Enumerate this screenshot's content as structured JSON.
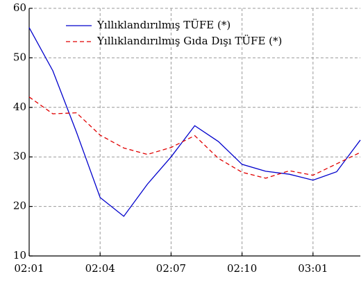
{
  "chart_data": {
    "type": "line",
    "categories": [
      "02:01",
      null,
      null,
      "02:04",
      null,
      null,
      "02:07",
      null,
      null,
      "02:10",
      null,
      null,
      "03:01",
      null,
      null
    ],
    "series": [
      {
        "name": "Yıllıklandırılmış TÜFE (*)",
        "color": "#0000cc",
        "dash": false,
        "values": [
          56.1,
          47.4,
          35.0,
          21.8,
          18.0,
          24.5,
          30.0,
          36.3,
          33.1,
          28.5,
          27.1,
          26.5,
          25.3,
          27.0,
          33.4
        ]
      },
      {
        "name": "Yıllıklandırılmış Gıda Dışı TÜFE (*)",
        "color": "#e00000",
        "dash": true,
        "values": [
          42.1,
          38.7,
          38.9,
          34.4,
          31.8,
          30.5,
          31.9,
          34.3,
          29.7,
          26.9,
          25.7,
          27.2,
          26.3,
          28.6,
          30.9
        ]
      }
    ],
    "ylim": [
      10,
      60
    ],
    "yticks": [
      10,
      20,
      30,
      40,
      50,
      60
    ],
    "grid": true,
    "legend": "top"
  }
}
